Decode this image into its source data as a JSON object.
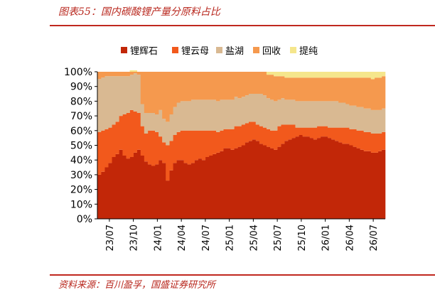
{
  "figure": {
    "title": "图表55：国内碳酸锂产量分原料占比",
    "source": "资料来源：百川盈孚，国盛证券研究所"
  },
  "colors": {
    "accent": "#c0281f"
  },
  "chart_data": {
    "type": "area",
    "stacked": true,
    "percent": true,
    "title": "",
    "xlabel": "",
    "ylabel": "",
    "ylim": [
      0,
      100
    ],
    "yticks": [
      "0%",
      "10%",
      "20%",
      "30%",
      "40%",
      "50%",
      "60%",
      "70%",
      "80%",
      "90%",
      "100%"
    ],
    "xticks": [
      "23/07",
      "23/10",
      "24/01",
      "24/04",
      "24/07",
      "25/01",
      "25/04",
      "25/07",
      "25/10",
      "26/01",
      "26/04",
      "26/07"
    ],
    "legend_position": "top",
    "grid": false,
    "series": [
      {
        "name": "锂辉石",
        "color": "#c22708",
        "values": [
          30,
          32,
          35,
          38,
          42,
          44,
          47,
          43,
          41,
          42,
          45,
          47,
          43,
          39,
          37,
          36,
          37,
          40,
          38,
          26,
          33,
          38,
          40,
          40,
          38,
          37,
          38,
          40,
          41,
          40,
          42,
          43,
          44,
          45,
          46,
          48,
          48,
          47,
          48,
          49,
          50,
          52,
          53,
          54,
          53,
          51,
          50,
          49,
          48,
          47,
          49,
          51,
          53,
          54,
          55,
          56,
          57,
          56,
          56,
          55,
          54,
          55,
          56,
          56,
          55,
          54,
          53,
          52,
          51,
          51,
          50,
          49,
          48,
          47,
          46,
          46,
          45,
          45,
          46,
          47
        ]
      },
      {
        "name": "锂云母",
        "color": "#f2591c",
        "values": [
          29,
          28,
          26,
          24,
          22,
          22,
          23,
          28,
          31,
          32,
          28,
          25,
          20,
          19,
          23,
          24,
          22,
          16,
          14,
          24,
          20,
          19,
          19,
          20,
          22,
          23,
          22,
          20,
          19,
          20,
          18,
          17,
          16,
          14,
          14,
          13,
          13,
          14,
          15,
          14,
          14,
          13,
          13,
          12,
          11,
          12,
          12,
          12,
          12,
          13,
          14,
          13,
          11,
          10,
          9,
          6,
          5,
          6,
          6,
          7,
          8,
          8,
          7,
          7,
          7,
          8,
          9,
          10,
          11,
          11,
          11,
          12,
          12,
          13,
          13,
          13,
          13,
          13,
          12,
          12
        ]
      },
      {
        "name": "盐湖",
        "color": "#d9b992",
        "values": [
          36,
          36,
          36,
          35,
          33,
          31,
          27,
          26,
          25,
          24,
          26,
          26,
          15,
          14,
          12,
          12,
          12,
          18,
          16,
          16,
          18,
          19,
          20,
          20,
          20,
          20,
          21,
          21,
          21,
          21,
          21,
          21,
          21,
          21,
          21,
          20,
          20,
          20,
          20,
          19,
          19,
          19,
          19,
          19,
          21,
          22,
          22,
          21,
          21,
          20,
          18,
          18,
          17,
          17,
          17,
          18,
          18,
          18,
          18,
          18,
          18,
          17,
          17,
          17,
          18,
          18,
          18,
          17,
          17,
          16,
          16,
          16,
          16,
          16,
          16,
          16,
          16,
          16,
          16,
          16
        ]
      },
      {
        "name": "回收",
        "color": "#f5994e",
        "values": [
          5,
          4,
          3,
          3,
          3,
          3,
          3,
          3,
          3,
          3,
          2,
          2,
          22,
          28,
          28,
          28,
          29,
          26,
          32,
          34,
          29,
          24,
          21,
          20,
          20,
          20,
          19,
          19,
          19,
          19,
          19,
          19,
          19,
          20,
          19,
          19,
          19,
          19,
          17,
          18,
          17,
          16,
          15,
          15,
          15,
          15,
          16,
          16,
          17,
          17,
          16,
          15,
          15,
          15,
          15,
          16,
          16,
          16,
          16,
          16,
          16,
          16,
          16,
          16,
          16,
          16,
          16,
          17,
          17,
          18,
          19,
          19,
          20,
          20,
          21,
          21,
          21,
          22,
          22,
          22
        ]
      },
      {
        "name": "提纯",
        "color": "#f5e68c",
        "values": [
          0,
          0,
          0,
          0,
          0,
          0,
          0,
          0,
          0,
          0,
          0,
          0,
          0,
          0,
          0,
          0,
          0,
          0,
          0,
          0,
          0,
          0,
          0,
          0,
          0,
          0,
          0,
          0,
          0,
          0,
          0,
          0,
          0,
          0,
          0,
          0,
          0,
          0,
          0,
          0,
          0,
          0,
          0,
          0,
          0,
          0,
          0,
          2,
          2,
          3,
          3,
          3,
          4,
          4,
          4,
          4,
          4,
          4,
          4,
          4,
          4,
          4,
          4,
          4,
          4,
          4,
          4,
          4,
          4,
          4,
          4,
          4,
          4,
          4,
          4,
          4,
          5,
          4,
          4,
          3
        ]
      }
    ]
  }
}
